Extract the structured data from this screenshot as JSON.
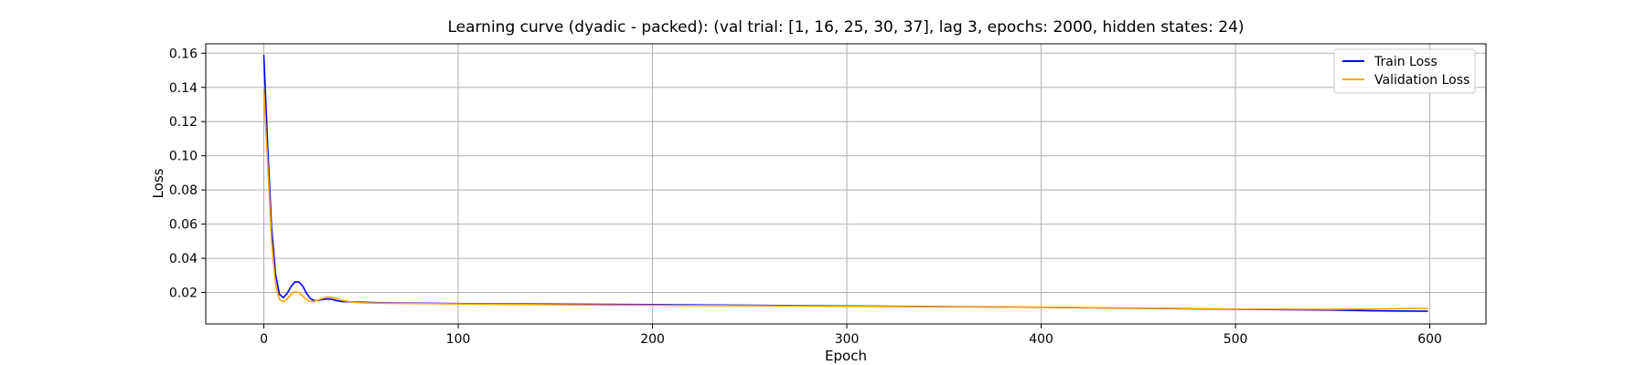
{
  "chart_data": {
    "type": "line",
    "title": "Learning curve (dyadic - packed): (val trial: [1, 16, 25, 30, 37], lag 3, epochs: 2000, hidden states: 24)",
    "xlabel": "Epoch",
    "ylabel": "Loss",
    "xlim": [
      -29.9,
      628.9
    ],
    "ylim": [
      0.0016,
      0.1655
    ],
    "xticks": [
      0,
      100,
      200,
      300,
      400,
      500,
      600
    ],
    "yticks": [
      0.02,
      0.04,
      0.06,
      0.08,
      0.1,
      0.12,
      0.14,
      0.16
    ],
    "grid": true,
    "legend": "top-right",
    "series": [
      {
        "name": "Train Loss",
        "color": "#0000ff",
        "x": [
          0,
          2,
          4,
          6,
          8,
          10,
          12,
          14,
          16,
          18,
          20,
          22,
          24,
          26,
          28,
          30,
          32,
          34,
          36,
          38,
          40,
          45,
          50,
          60,
          80,
          100,
          150,
          200,
          250,
          300,
          350,
          400,
          450,
          500,
          550,
          570,
          599
        ],
        "y": [
          0.159,
          0.105,
          0.058,
          0.031,
          0.019,
          0.017,
          0.0195,
          0.0235,
          0.0262,
          0.0262,
          0.0238,
          0.0195,
          0.0164,
          0.0152,
          0.0153,
          0.0159,
          0.0162,
          0.0162,
          0.0157,
          0.0151,
          0.0147,
          0.0145,
          0.0143,
          0.014,
          0.0137,
          0.0135,
          0.0132,
          0.0129,
          0.0125,
          0.0121,
          0.0117,
          0.0113,
          0.0108,
          0.0102,
          0.0097,
          0.0093,
          0.009
        ]
      },
      {
        "name": "Validation Loss",
        "color": "#ffa500",
        "x": [
          0,
          2,
          4,
          6,
          8,
          10,
          12,
          14,
          16,
          18,
          20,
          22,
          24,
          26,
          28,
          30,
          32,
          34,
          36,
          38,
          40,
          45,
          50,
          60,
          80,
          100,
          150,
          200,
          250,
          300,
          350,
          400,
          450,
          500,
          550,
          570,
          580,
          590,
          599
        ],
        "y": [
          0.139,
          0.095,
          0.05,
          0.025,
          0.016,
          0.0145,
          0.0162,
          0.019,
          0.0205,
          0.02,
          0.018,
          0.0158,
          0.0148,
          0.0148,
          0.0155,
          0.0165,
          0.0172,
          0.0173,
          0.017,
          0.0163,
          0.0155,
          0.0145,
          0.014,
          0.0137,
          0.0135,
          0.0133,
          0.0128,
          0.0125,
          0.0122,
          0.0119,
          0.0116,
          0.0113,
          0.0109,
          0.0103,
          0.0102,
          0.0103,
          0.0105,
          0.0106,
          0.0106
        ]
      }
    ]
  }
}
